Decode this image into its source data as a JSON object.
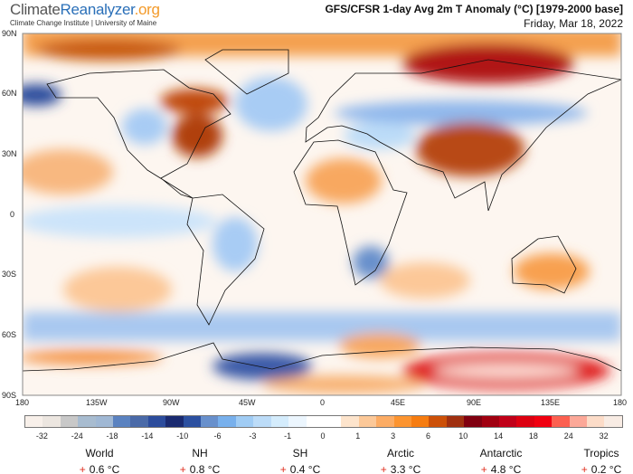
{
  "header": {
    "logo_part1": "Climate",
    "logo_part2": "Reanalyzer",
    ".org": null,
    "logo_part3": ".org",
    "subtitle": "Climate Change Institute | University of Maine",
    "title": "GFS/CFSR 1-day Avg 2m T Anomaly (°C) [1979-2000 base]",
    "date": "Friday, Mar 18, 2022"
  },
  "map": {
    "lat_labels": [
      "90N",
      "60N",
      "30N",
      "0",
      "30S",
      "60S",
      "90S"
    ],
    "lon_labels": [
      "180",
      "135W",
      "90W",
      "45W",
      "0",
      "45E",
      "90E",
      "135E",
      "180"
    ]
  },
  "colorbar": {
    "labels": [
      "-32",
      "-24",
      "-18",
      "-14",
      "-10",
      "-6",
      "-3",
      "-1",
      "0",
      "1",
      "3",
      "6",
      "10",
      "14",
      "18",
      "24",
      "32"
    ],
    "colors": [
      "#f8f0ea",
      "#ece6e0",
      "#c8c8c8",
      "#a8bcd0",
      "#a0b8d4",
      "#5a82c0",
      "#4a6aa8",
      "#2c4c9c",
      "#1a2a70",
      "#2c50a0",
      "#6890cc",
      "#78b0ec",
      "#a0ccf4",
      "#bcdcf8",
      "#d4ecfc",
      "#ecf6fe",
      "#ffffff",
      "#ffffff",
      "#fde4cc",
      "#fcc898",
      "#fcac64",
      "#fc9430",
      "#f67c10",
      "#cc5008",
      "#a03010",
      "#800010",
      "#a00010",
      "#c00018",
      "#dc0010",
      "#f00010",
      "#fc6050",
      "#fca898",
      "#fcdcc8",
      "#f8ece4"
    ]
  },
  "stats": [
    {
      "region": "World",
      "sign": "+",
      "value": "0.6 °C"
    },
    {
      "region": "NH",
      "sign": "+",
      "value": "0.8 °C"
    },
    {
      "region": "SH",
      "sign": "+",
      "value": "0.4 °C"
    },
    {
      "region": "Arctic",
      "sign": "+",
      "value": "3.3 °C"
    },
    {
      "region": "Antarctic",
      "sign": "+",
      "value": "4.8 °C"
    },
    {
      "region": "Tropics",
      "sign": "+",
      "value": "0.2 °C"
    }
  ]
}
